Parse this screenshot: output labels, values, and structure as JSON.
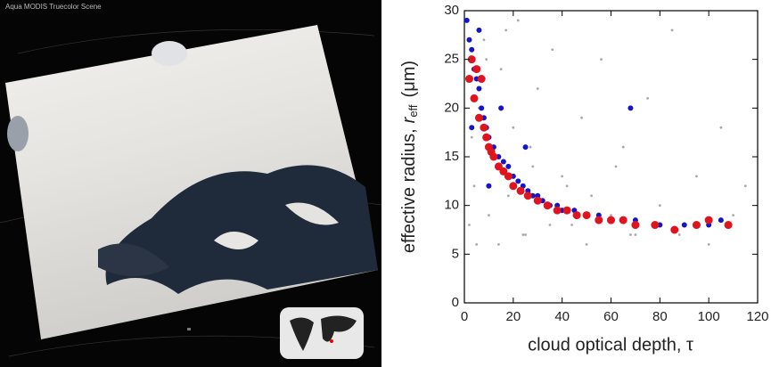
{
  "image_panel": {
    "caption": "Aqua MODIS Truecolor Scene"
  },
  "chart_data": {
    "type": "scatter",
    "xlabel": "cloud optical depth, τ",
    "ylabel": {
      "main": "effective radius,",
      "symbol": "r",
      "subscript": "eff",
      "unit": "(μm)"
    },
    "xlim": [
      0,
      120
    ],
    "xticks": [
      0,
      20,
      40,
      60,
      80,
      100,
      120
    ],
    "ylim": [
      0,
      30
    ],
    "yticks": [
      0,
      5,
      10,
      15,
      20,
      25,
      30
    ],
    "series": [
      {
        "color": "#a8a8a8",
        "marker_size": 1.4,
        "x": [
          2,
          4,
          6,
          8,
          10,
          12,
          15,
          18,
          20,
          22,
          25,
          28,
          30,
          33,
          36,
          40,
          44,
          48,
          52,
          56,
          60,
          65,
          70,
          75,
          80,
          85,
          90,
          95,
          100,
          105,
          110,
          115,
          5,
          14,
          24,
          35,
          50,
          68,
          88,
          3,
          9,
          17,
          27,
          42,
          62
        ],
        "values": [
          8,
          12,
          20,
          27,
          9,
          15,
          24,
          11,
          18,
          29,
          7,
          14,
          22,
          10,
          26,
          13,
          8,
          19,
          11,
          25,
          9,
          16,
          7,
          21,
          10,
          28,
          8,
          13,
          6,
          18,
          9,
          12,
          6,
          6,
          7,
          8,
          6,
          7,
          7,
          17,
          25,
          28,
          16,
          12,
          14
        ]
      },
      {
        "color": "#1414c8",
        "marker_size": 3,
        "x": [
          1,
          2,
          3,
          4,
          5,
          6,
          7,
          8,
          9,
          10,
          12,
          14,
          16,
          18,
          20,
          22,
          24,
          26,
          28,
          30,
          32,
          35,
          38,
          40,
          45,
          50,
          55,
          60,
          65,
          70,
          80,
          90,
          100,
          105,
          3,
          6,
          10,
          15,
          25,
          68
        ],
        "values": [
          29,
          27,
          26,
          24,
          23,
          22,
          20,
          19,
          18,
          17,
          16,
          15,
          14.5,
          14,
          13,
          12.5,
          12,
          11.5,
          11,
          11,
          10.5,
          10,
          10,
          9.5,
          9.5,
          9,
          9,
          8.5,
          8.5,
          8.5,
          8,
          8,
          8,
          8.5,
          18,
          28,
          12,
          20,
          16,
          20
        ]
      },
      {
        "color": "#e0141e",
        "marker_size": 4.5,
        "x": [
          2,
          3,
          4,
          5,
          6,
          7,
          8,
          9,
          10,
          11,
          12,
          14,
          16,
          18,
          20,
          23,
          26,
          30,
          34,
          38,
          42,
          46,
          50,
          55,
          60,
          65,
          70,
          78,
          86,
          95,
          100,
          108
        ],
        "values": [
          23,
          25,
          21,
          24,
          19,
          23,
          18,
          17,
          16,
          15.5,
          15,
          14,
          13.5,
          13,
          12,
          11.5,
          11,
          10.5,
          10,
          9.5,
          9.5,
          9,
          9,
          8.5,
          8.5,
          8.5,
          8,
          8,
          7.5,
          8,
          8.5,
          8
        ]
      }
    ]
  }
}
